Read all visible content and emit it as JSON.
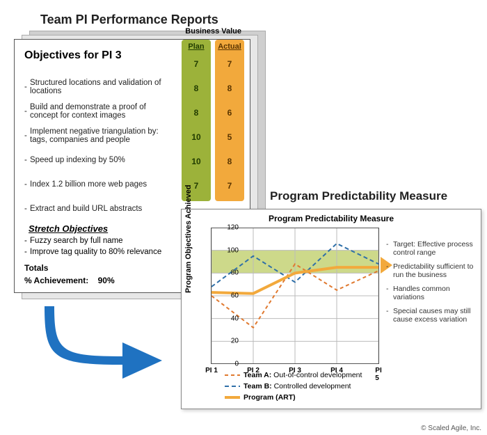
{
  "titles": {
    "team_reports": "Team PI Performance Reports",
    "objectives_heading": "Objectives for PI 3",
    "bv_header": "Business Value",
    "stretch_heading": "Stretch Objectives",
    "totals": "Totals",
    "achievement_label": "% Achievement:",
    "achievement_value": "90%",
    "chart_outer": "Program Predictability Measure",
    "chart_inner": "Program Predictability Measure",
    "ylabel": "Program Objectives Achieved",
    "copyright": "© Scaled Agile, Inc."
  },
  "columns": {
    "plan": {
      "label": "Plan",
      "bg": "#9cb23a",
      "text": "#213c00"
    },
    "actual": {
      "label": "Actual",
      "bg": "#f2a93c",
      "text": "#5a3500"
    }
  },
  "objectives": [
    {
      "text": "Structured locations and validation of locations",
      "plan": 7,
      "actual": 7
    },
    {
      "text": "Build and demonstrate a proof of concept for context images",
      "plan": 8,
      "actual": 8
    },
    {
      "text": "Implement negative triangulation by: tags, companies and people",
      "plan": 8,
      "actual": 6
    },
    {
      "text": "Speed up indexing by 50%",
      "plan": 10,
      "actual": 5
    },
    {
      "text": "Index 1.2 billion more web pages",
      "plan": 10,
      "actual": 8
    },
    {
      "text": "Extract and build URL abstracts",
      "plan": 7,
      "actual": 7
    }
  ],
  "stretch": [
    "Fuzzy search by full name",
    "Improve tag quality to 80% relevance"
  ],
  "chart": {
    "type": "line",
    "xlabels": [
      "PI 1",
      "PI 2",
      "PI 3",
      "PI 4",
      "PI 5"
    ],
    "ylim": [
      0,
      120
    ],
    "yticks": [
      0,
      20,
      40,
      60,
      80,
      100,
      120
    ],
    "band": {
      "from": 80,
      "to": 100,
      "color": "#cdd98a"
    },
    "grid_color": "#bbbbbb",
    "axis_color": "#555555",
    "background": "#ffffff",
    "series": [
      {
        "name": "Team A",
        "label": "Team A: Out-of-control development",
        "color": "#e0792f",
        "dash": "5,4",
        "width": 2,
        "values": [
          60,
          32,
          88,
          65,
          82
        ]
      },
      {
        "name": "Team B",
        "label": "Team B: Controlled development",
        "color": "#2f6fa8",
        "dash": "6,4",
        "width": 2,
        "values": [
          68,
          95,
          72,
          106,
          88
        ]
      },
      {
        "name": "Program",
        "label": "Program (ART)",
        "color": "#f2a93c",
        "dash": "",
        "width": 4,
        "values": [
          63,
          62,
          80,
          85,
          85
        ]
      }
    ],
    "notes": [
      "Target: Effective process control range",
      "Predictability sufficient to run the business",
      "Handles common variations",
      "Special causes may still cause excess variation"
    ],
    "band_arrow_color": "#f2a93c"
  },
  "arrow": {
    "color": "#1f72c1"
  }
}
